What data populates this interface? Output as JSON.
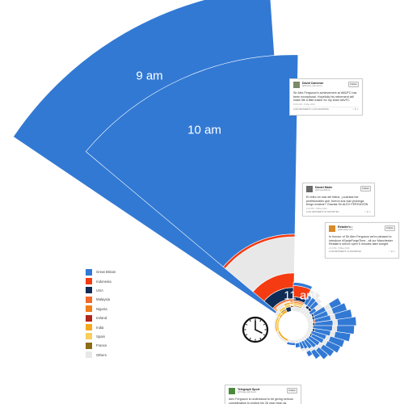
{
  "chart_data": {
    "type": "radial-stacked-bar",
    "hour_labels": [
      "9 am",
      "10 am",
      "11 am"
    ],
    "legend": [
      {
        "name": "Great Britain",
        "color": "#3279d4"
      },
      {
        "name": "Indonesia",
        "color": "#f43b12"
      },
      {
        "name": "USA",
        "color": "#0e2c55"
      },
      {
        "name": "Malaysia",
        "color": "#f16a2a"
      },
      {
        "name": "Nigeria",
        "color": "#ef7d1a"
      },
      {
        "name": "Ireland",
        "color": "#b1261b"
      },
      {
        "name": "India",
        "color": "#f6a91f"
      },
      {
        "name": "Spain",
        "color": "#f7cf5a"
      },
      {
        "name": "France",
        "color": "#8d6c16"
      },
      {
        "name": "Others",
        "color": "#e8e8e8"
      }
    ],
    "sectors": [
      {
        "label": "9 am",
        "start_deg": -56,
        "end_deg": -4,
        "segments": [
          {
            "name": "Great Britain",
            "value": 1000
          }
        ]
      },
      {
        "label": "10 am",
        "start_deg": -50,
        "end_deg": 1,
        "segments": [
          {
            "name": "Others",
            "value": 12
          },
          {
            "name": "Ireland",
            "value": 4
          },
          {
            "name": "France",
            "value": 3
          },
          {
            "name": "Spain",
            "value": 3
          },
          {
            "name": "India",
            "value": 5
          },
          {
            "name": "Nigeria",
            "value": 5
          },
          {
            "name": "Malaysia",
            "value": 6
          },
          {
            "name": "USA",
            "value": 35
          },
          {
            "name": "Indonesia",
            "value": 45
          },
          {
            "name": "Others",
            "value": 112
          },
          {
            "name": "Indonesia",
            "value": 8
          },
          {
            "name": "Great Britain",
            "value": 555
          }
        ]
      },
      {
        "label": "11 am",
        "start_deg": 0,
        "end_deg": 26,
        "segments": [
          {
            "name": "Others",
            "value": 14
          },
          {
            "name": "France",
            "value": 3
          },
          {
            "name": "Spain",
            "value": 4
          },
          {
            "name": "India",
            "value": 4
          },
          {
            "name": "Nigeria",
            "value": 4
          },
          {
            "name": "Malaysia",
            "value": 4
          },
          {
            "name": "USA",
            "value": 11
          },
          {
            "name": "Indonesia",
            "value": 35
          },
          {
            "name": "Great Britain",
            "value": 10
          }
        ]
      },
      {
        "start_deg": 26,
        "end_deg": 34,
        "segments": [
          {
            "name": "Others",
            "value": 30
          },
          {
            "name": "Great Britain",
            "value": 30
          },
          {
            "name": "Others",
            "value": 18
          }
        ]
      },
      {
        "start_deg": 34,
        "end_deg": 42,
        "segments": [
          {
            "name": "Others",
            "value": 22
          },
          {
            "name": "USA",
            "value": 8
          },
          {
            "name": "Great Britain",
            "value": 30
          },
          {
            "name": "Others",
            "value": 20
          }
        ]
      },
      {
        "start_deg": 42,
        "end_deg": 50,
        "segments": [
          {
            "name": "Others",
            "value": 22
          },
          {
            "name": "USA",
            "value": 8
          },
          {
            "name": "Great Britain",
            "value": 28
          },
          {
            "name": "Others",
            "value": 12
          }
        ]
      },
      {
        "start_deg": 50,
        "end_deg": 58,
        "segments": [
          {
            "name": "Others",
            "value": 18
          },
          {
            "name": "Great Britain",
            "value": 22
          },
          {
            "name": "Others",
            "value": 22
          }
        ]
      },
      {
        "start_deg": 58,
        "end_deg": 66,
        "segments": [
          {
            "name": "Others",
            "value": 20
          },
          {
            "name": "USA",
            "value": 6
          },
          {
            "name": "Great Britain",
            "value": 40
          },
          {
            "name": "Others",
            "value": 18
          },
          {
            "name": "Great Britain",
            "value": 34
          }
        ]
      },
      {
        "start_deg": 66,
        "end_deg": 74,
        "segments": [
          {
            "name": "Others",
            "value": 18
          },
          {
            "name": "USA",
            "value": 6
          },
          {
            "name": "Great Britain",
            "value": 44
          },
          {
            "name": "Others",
            "value": 16
          },
          {
            "name": "Great Britain",
            "value": 44
          }
        ]
      },
      {
        "start_deg": 74,
        "end_deg": 82,
        "segments": [
          {
            "name": "Others",
            "value": 18
          },
          {
            "name": "Indonesia",
            "value": 5
          },
          {
            "name": "Great Britain",
            "value": 50
          },
          {
            "name": "Others",
            "value": 14
          },
          {
            "name": "Great Britain",
            "value": 52
          }
        ]
      },
      {
        "start_deg": 82,
        "end_deg": 90,
        "segments": [
          {
            "name": "Others",
            "value": 16
          },
          {
            "name": "USA",
            "value": 6
          },
          {
            "name": "Great Britain",
            "value": 56
          },
          {
            "name": "Others",
            "value": 14
          },
          {
            "name": "Great Britain",
            "value": 58
          }
        ]
      },
      {
        "start_deg": 90,
        "end_deg": 98,
        "segments": [
          {
            "name": "Others",
            "value": 16
          },
          {
            "name": "Great Britain",
            "value": 60
          },
          {
            "name": "Others",
            "value": 14
          },
          {
            "name": "Great Britain",
            "value": 54
          }
        ]
      },
      {
        "start_deg": 98,
        "end_deg": 106,
        "segments": [
          {
            "name": "Others",
            "value": 16
          },
          {
            "name": "USA",
            "value": 6
          },
          {
            "name": "Great Britain",
            "value": 50
          },
          {
            "name": "Others",
            "value": 14
          },
          {
            "name": "Great Britain",
            "value": 48
          }
        ]
      },
      {
        "start_deg": 106,
        "end_deg": 114,
        "segments": [
          {
            "name": "Others",
            "value": 14
          },
          {
            "name": "Great Britain",
            "value": 48
          },
          {
            "name": "Others",
            "value": 12
          },
          {
            "name": "Great Britain",
            "value": 46
          }
        ]
      },
      {
        "start_deg": 114,
        "end_deg": 122,
        "segments": [
          {
            "name": "Others",
            "value": 14
          },
          {
            "name": "USA",
            "value": 5
          },
          {
            "name": "Great Britain",
            "value": 40
          },
          {
            "name": "Others",
            "value": 12
          },
          {
            "name": "Great Britain",
            "value": 44
          }
        ]
      },
      {
        "start_deg": 122,
        "end_deg": 130,
        "segments": [
          {
            "name": "Others",
            "value": 14
          },
          {
            "name": "Great Britain",
            "value": 38
          },
          {
            "name": "Others",
            "value": 12
          },
          {
            "name": "Great Britain",
            "value": 40
          }
        ]
      },
      {
        "start_deg": 130,
        "end_deg": 138,
        "segments": [
          {
            "name": "Others",
            "value": 12
          },
          {
            "name": "Great Britain",
            "value": 36
          },
          {
            "name": "Others",
            "value": 10
          },
          {
            "name": "Great Britain",
            "value": 38
          }
        ]
      },
      {
        "start_deg": 138,
        "end_deg": 146,
        "segments": [
          {
            "name": "Others",
            "value": 12
          },
          {
            "name": "Great Britain",
            "value": 30
          },
          {
            "name": "Others",
            "value": 10
          },
          {
            "name": "Great Britain",
            "value": 28
          }
        ]
      },
      {
        "start_deg": 146,
        "end_deg": 154,
        "segments": [
          {
            "name": "Others",
            "value": 10
          },
          {
            "name": "Great Britain",
            "value": 26
          },
          {
            "name": "Others",
            "value": 10
          },
          {
            "name": "Great Britain",
            "value": 16
          }
        ]
      },
      {
        "start_deg": 154,
        "end_deg": 162,
        "segments": [
          {
            "name": "Others",
            "value": 10
          },
          {
            "name": "Great Britain",
            "value": 22
          },
          {
            "name": "Others",
            "value": 8
          }
        ]
      },
      {
        "start_deg": 162,
        "end_deg": 174,
        "segments": [
          {
            "name": "Others",
            "value": 10
          },
          {
            "name": "Great Britain",
            "value": 14
          }
        ]
      },
      {
        "start_deg": 174,
        "end_deg": 200,
        "segments": [
          {
            "name": "Others",
            "value": 8
          },
          {
            "name": "Great Britain",
            "value": 8
          }
        ]
      },
      {
        "start_deg": 200,
        "end_deg": 250,
        "segments": [
          {
            "name": "India",
            "value": 6
          },
          {
            "name": "Others",
            "value": 6
          }
        ]
      },
      {
        "start_deg": 250,
        "end_deg": 300,
        "segments": [
          {
            "name": "Spain",
            "value": 6
          },
          {
            "name": "India",
            "value": 5
          },
          {
            "name": "Others",
            "value": 4
          }
        ]
      },
      {
        "start_deg": 300,
        "end_deg": 316,
        "segments": [
          {
            "name": "India",
            "value": 6
          },
          {
            "name": "Spain",
            "value": 8
          },
          {
            "name": "Others",
            "value": 8
          }
        ]
      },
      {
        "start_deg": 316,
        "end_deg": 336,
        "segments": [
          {
            "name": "India",
            "value": 8
          },
          {
            "name": "France",
            "value": 4
          },
          {
            "name": "Spain",
            "value": 8
          },
          {
            "name": "Others",
            "value": 10
          }
        ]
      },
      {
        "start_deg": 336,
        "end_deg": 352,
        "segments": [
          {
            "name": "USA",
            "value": 14
          },
          {
            "name": "Spain",
            "value": 8
          },
          {
            "name": "India",
            "value": 6
          },
          {
            "name": "Others",
            "value": 4
          }
        ]
      }
    ]
  },
  "tweets": [
    {
      "id": "cameron",
      "name": "David Cameron",
      "handle": "@David_Cameron",
      "follow_label": "Follow",
      "avatar_color": "#7a8a6a",
      "text": "Sir Alex Ferguson's achievement at #MUFC has been exceptional. Hopefully his retirement will make life a little easier for my team #AVFC",
      "meta": "10:54 AM - 8 May 2013",
      "stats": "2,004 RETWEETS  1,131 FAVORITES",
      "actions": "↰ ⇄ ★"
    },
    {
      "id": "dedi",
      "name": "Daniel Marin",
      "handle": "@DanielMarin",
      "follow_label": "Follow",
      "avatar_color": "#6a6a6a",
      "text": "El retiro en ruta del fútbol, ¿cuántas fue profesionales que, fueron sus viaz prolonga tengo mostrar? Gracias Sir ALEX FERGUSON",
      "meta": "1:15 PM - 8 May 2013",
      "stats": "2,221 RETWEETS  61 FAVORITES",
      "actions": "↰ ⇄ ★"
    },
    {
      "id": "retailers",
      "name": "Retailer's •",
      "handle": "@RetailersUK",
      "follow_label": "Follow",
      "avatar_color": "#d98a2a",
      "text": "In honour of Sir Alex Ferguson we're pleased to introduce #SanjeForgeTime - all our Manchester Retailer's will be open 5 minutes later tonight.",
      "meta": "2:11 PM - 8 May 2013",
      "stats": "2,229 RETWEETS  11 FAVORITES",
      "actions": "↰ ⇄ ★"
    },
    {
      "id": "telegraph",
      "name": "Telegraph Sport",
      "handle": "@TelegraphSport",
      "follow_label": "Follow",
      "avatar_color": "#4c8a3a",
      "text": "Alex Ferguson is understood to be giving serious consideration to ending his 26 year reign as",
      "meta": "",
      "stats": "",
      "actions": ""
    }
  ]
}
